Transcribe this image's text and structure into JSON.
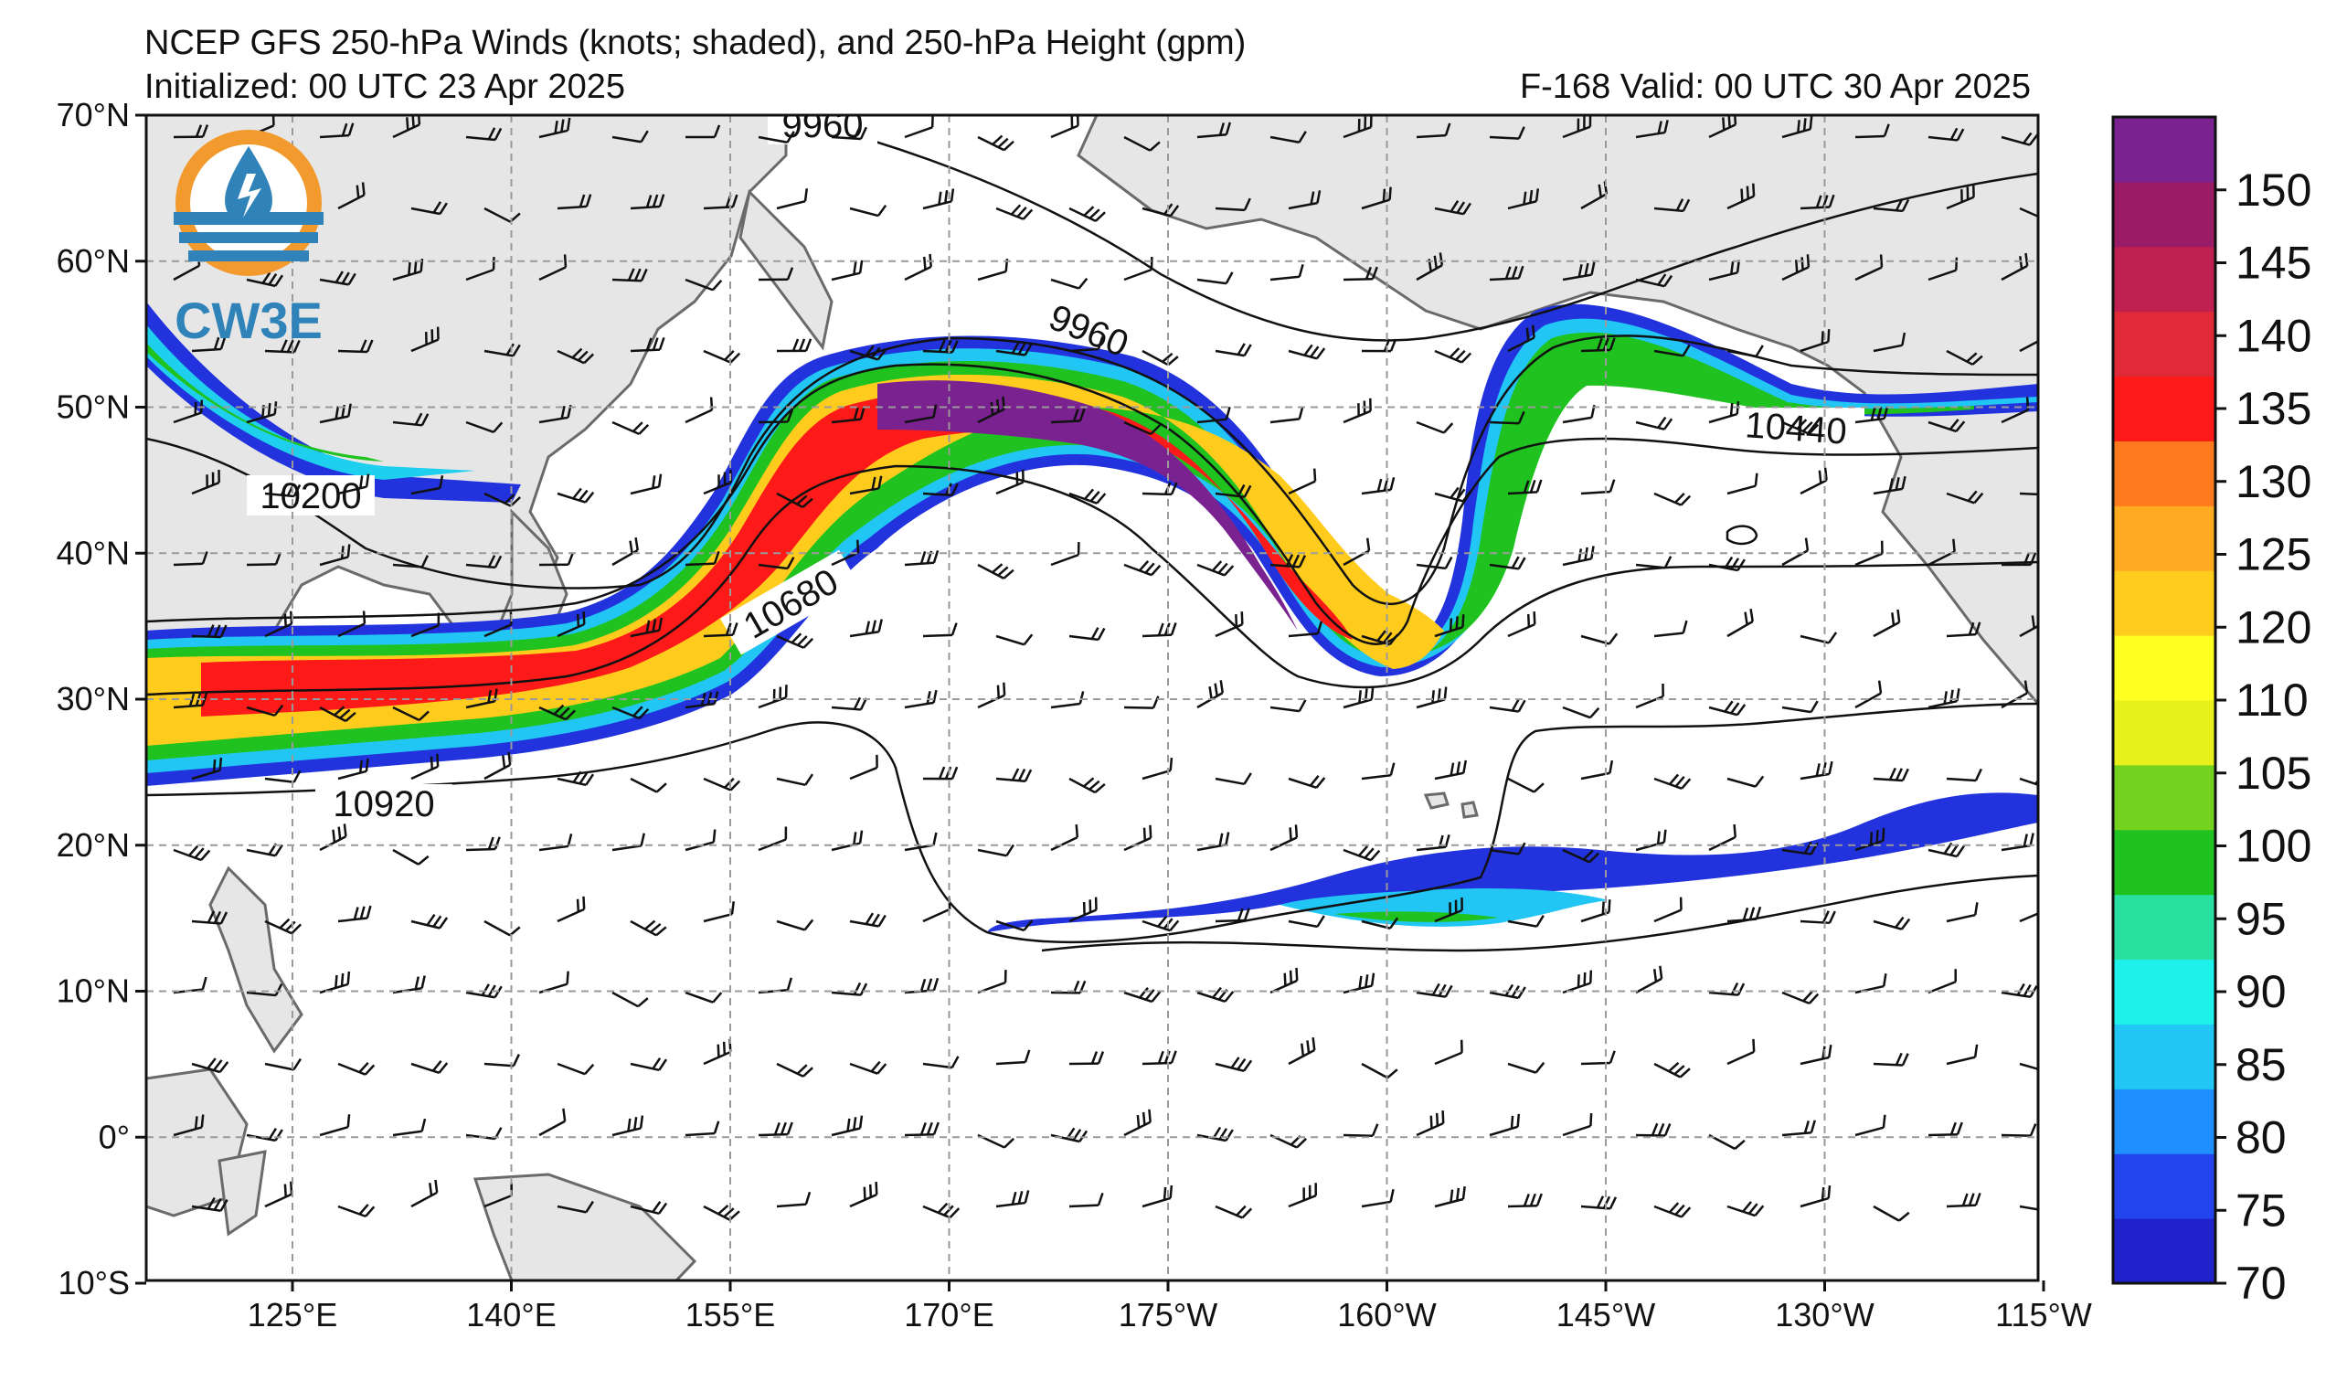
{
  "title_line1": "NCEP GFS 250-hPa Winds (knots; shaded), and 250-hPa Height (gpm)",
  "title_line2_left": "Initialized: 00 UTC 23 Apr 2025",
  "title_line2_right": "F-168  Valid: 00 UTC 30 Apr 2025",
  "logo": {
    "text": "CW3E",
    "icon": "water-drop-lightning-logo-icon"
  },
  "lat_labels": [
    "70°N",
    "60°N",
    "50°N",
    "40°N",
    "30°N",
    "20°N",
    "10°N",
    "0°",
    "10°S"
  ],
  "lon_labels": [
    "125°E",
    "140°E",
    "155°E",
    "170°E",
    "175°W",
    "160°W",
    "145°W",
    "130°W",
    "115°W"
  ],
  "colorbar": {
    "labels": [
      "70",
      "75",
      "80",
      "85",
      "90",
      "95",
      "100",
      "105",
      "110",
      "120",
      "125",
      "130",
      "135",
      "140",
      "145",
      "150"
    ],
    "colors": [
      "#2222cc",
      "#2244ee",
      "#1f8fff",
      "#22c6f4",
      "#1ef0ea",
      "#28e0a0",
      "#1fc21f",
      "#72d21e",
      "#e8f01c",
      "#ffff22",
      "#ffcc1e",
      "#ffaa20",
      "#ff7a1e",
      "#ff1a1a",
      "#e02a3a",
      "#c02050",
      "#9a1c66",
      "#7a2290"
    ]
  },
  "contour_labels": [
    "9960",
    "9960",
    "10200",
    "10440",
    "10680",
    "10920"
  ],
  "colors": {
    "land": "#e6e6e6",
    "coast": "#6a6a6a",
    "ocean": "#ffffff",
    "grid": "#9a9a9a"
  }
}
